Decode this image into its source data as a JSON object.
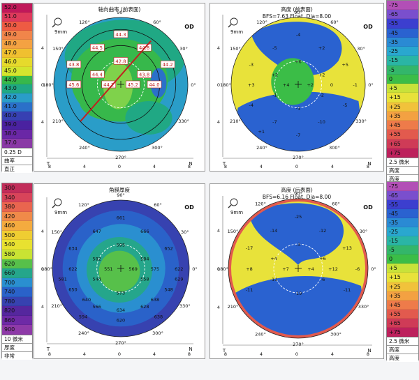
{
  "eye": "OD",
  "zoom_label": "9mm",
  "scales": {
    "curvature": {
      "values": [
        "52.0",
        "51.0",
        "50.0",
        "49.0",
        "48.0",
        "47.0",
        "46.0",
        "45.0",
        "44.0",
        "43.0",
        "42.0",
        "41.0",
        "40.0",
        "39.0",
        "38.0",
        "37.0"
      ],
      "colors": [
        "#c0185a",
        "#de3a5c",
        "#ee5b43",
        "#f1854a",
        "#f4a242",
        "#f0c030",
        "#e6da2c",
        "#d3e52e",
        "#37b84b",
        "#20a884",
        "#2a9dc8",
        "#2b70c9",
        "#3740b2",
        "#4a22a0",
        "#6a27a6",
        "#8a3aa6"
      ],
      "step": "0.25 D",
      "name": "曲率",
      "mode": "直正"
    },
    "elevation_front": {
      "values": [
        "-75",
        "-65",
        "-55",
        "-45",
        "-35",
        "-25",
        "-15",
        "-5",
        "0",
        "+5",
        "+15",
        "+25",
        "+35",
        "+45",
        "+55",
        "+65",
        "+75"
      ],
      "colors": [
        "#b24fb6",
        "#7a4fcd",
        "#3c3fcf",
        "#2a62d0",
        "#2a8ad4",
        "#29a7cf",
        "#2ab5a5",
        "#33b66a",
        "#3bbd47",
        "#c8e23a",
        "#e8e23a",
        "#f1c23b",
        "#f3a142",
        "#ee7b4a",
        "#e25a4e",
        "#cf3b57",
        "#bd205c"
      ],
      "step": "2.5 微米",
      "name": "高度",
      "mode": "高度"
    },
    "thickness": {
      "values": [
        "300",
        "340",
        "380",
        "420",
        "460",
        "500",
        "540",
        "580",
        "620",
        "660",
        "700",
        "740",
        "780",
        "820",
        "860",
        "900"
      ],
      "colors": [
        "#c22d5a",
        "#d8445a",
        "#e9654f",
        "#f08a49",
        "#f4ab3f",
        "#efcd32",
        "#e8e130",
        "#c9e333",
        "#57c04a",
        "#25a68b",
        "#2a8fd0",
        "#2a62c9",
        "#3742b0",
        "#55279e",
        "#6e2aa6",
        "#8e3aa8"
      ],
      "step": "10 微米",
      "name": "厚度",
      "mode": "非常"
    },
    "elevation_back": {
      "values": [
        "-75",
        "-65",
        "-55",
        "-45",
        "-35",
        "-25",
        "-15",
        "-5",
        "0",
        "+5",
        "+15",
        "+25",
        "+35",
        "+45",
        "+55",
        "+65",
        "+75"
      ],
      "colors": [
        "#b24fb6",
        "#7a4fcd",
        "#3c3fcf",
        "#2a62d0",
        "#2a8ad4",
        "#29a7cf",
        "#2ab5a5",
        "#33b66a",
        "#3bbd47",
        "#c8e23a",
        "#e8e23a",
        "#f1c23b",
        "#f3a142",
        "#ee7b4a",
        "#e25a4e",
        "#cf3b57",
        "#bd205c"
      ],
      "step": "2.5 微米",
      "name": "高度",
      "mode": "高度"
    }
  },
  "maps": {
    "axial": {
      "title": "轴向曲率 (前表面)",
      "subtitle": "",
      "center_values": [
        "44.3",
        "44.5",
        "44.8",
        "43.8",
        "42.8",
        "44.2",
        "44.4",
        "43.8",
        "45.6",
        "44.2",
        "45.2",
        "44.0"
      ]
    },
    "front_elev": {
      "title": "高度 (前表面)",
      "subtitle": "BFS=7.63 Float, Dia=8.00",
      "values": [
        "-4",
        "-5",
        "+2",
        "-3",
        "+6",
        "+5",
        "+2",
        "+2",
        "+3",
        "+4",
        "+2",
        "0",
        "-1",
        "-1",
        "-2",
        "-4",
        "-1",
        "-5",
        "-7",
        "-10",
        "-7",
        "+1"
      ]
    },
    "pachy": {
      "title": "角膜厚度",
      "subtitle": "",
      "values": [
        "661",
        "647",
        "666",
        "634",
        "595",
        "652",
        "582",
        "584",
        "622",
        "551",
        "569",
        "575",
        "622",
        "544",
        "558",
        "650",
        "573",
        "548",
        "566",
        "628",
        "620",
        "594",
        "638",
        "581",
        "629",
        "640",
        "638",
        "634"
      ]
    },
    "back_elev": {
      "title": "高度 (后表面)",
      "subtitle": "BFS=6.16 Float, Dia=8.00",
      "values": [
        "-25",
        "-14",
        "-12",
        "-17",
        "-3",
        "+13",
        "+4",
        "+6",
        "+8",
        "+7",
        "+4",
        "+12",
        "-6",
        "-11",
        "-6",
        "-11",
        "-19",
        "-11"
      ]
    }
  },
  "axis": {
    "deg_labels": [
      "90°",
      "60°",
      "30°",
      "0°",
      "330°",
      "300°",
      "270°",
      "240°",
      "210°",
      "180°",
      "150°",
      "120°"
    ],
    "ticks": [
      "8",
      "4",
      "0",
      "4",
      "8"
    ],
    "y_ticks": [
      "4",
      "0",
      "4"
    ],
    "t": "T",
    "n": "N"
  }
}
